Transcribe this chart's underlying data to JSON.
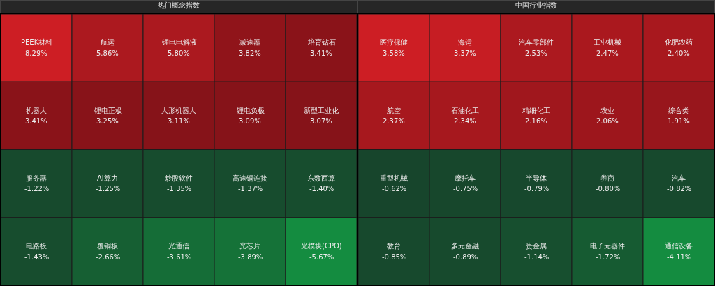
{
  "chart_data": [
    {
      "type": "other",
      "title": "热门概念指数",
      "categories": [
        "PEEK材料",
        "航运",
        "锂电电解液",
        "减速器",
        "培育钻石",
        "机器人",
        "锂电正极",
        "人形机器人",
        "锂电负极",
        "新型工业化",
        "服务器",
        "AI算力",
        "炒股软件",
        "高速铜连接",
        "东数西算",
        "电路板",
        "覆铜板",
        "光通信",
        "光芯片",
        "光模块(CPO)"
      ],
      "values": [
        8.29,
        5.86,
        5.8,
        3.82,
        3.41,
        3.41,
        3.25,
        3.11,
        3.09,
        3.07,
        -1.22,
        -1.25,
        -1.35,
        -1.37,
        -1.4,
        -1.43,
        -2.66,
        -3.61,
        -3.89,
        -5.67
      ],
      "value_labels": [
        "8.29%",
        "5.86%",
        "5.80%",
        "3.82%",
        "3.41%",
        "3.41%",
        "3.25%",
        "3.11%",
        "3.09%",
        "3.07%",
        "-1.22%",
        "-1.25%",
        "-1.35%",
        "-1.37%",
        "-1.40%",
        "-1.43%",
        "-2.66%",
        "-3.61%",
        "-3.89%",
        "-5.67%"
      ]
    },
    {
      "type": "other",
      "title": "中国行业指数",
      "categories": [
        "医疗保健",
        "海运",
        "汽车零部件",
        "工业机械",
        "化肥农药",
        "航空",
        "石油化工",
        "精细化工",
        "农业",
        "综合类",
        "重型机械",
        "摩托车",
        "半导体",
        "券商",
        "汽车",
        "教育",
        "多元金融",
        "贵金属",
        "电子元器件",
        "通信设备"
      ],
      "values": [
        3.58,
        3.37,
        2.53,
        2.47,
        2.4,
        2.37,
        2.34,
        2.16,
        2.06,
        1.91,
        -0.62,
        -0.75,
        -0.79,
        -0.8,
        -0.82,
        -0.85,
        -0.89,
        -1.14,
        -1.72,
        -4.11
      ],
      "value_labels": [
        "3.58%",
        "3.37%",
        "2.53%",
        "2.47%",
        "2.40%",
        "2.37%",
        "2.34%",
        "2.16%",
        "2.06%",
        "1.91%",
        "-0.62%",
        "-0.75%",
        "-0.79%",
        "-0.80%",
        "-0.82%",
        "-0.85%",
        "-0.89%",
        "-1.14%",
        "-1.72%",
        "-4.11%"
      ]
    }
  ]
}
